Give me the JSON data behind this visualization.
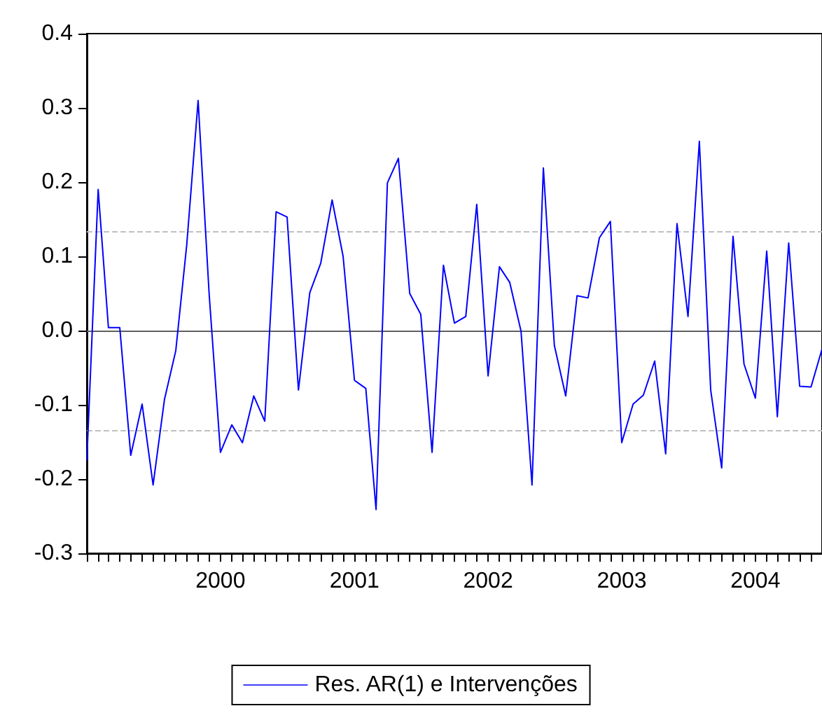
{
  "chart_data": {
    "type": "line",
    "x": [
      "1999-01",
      "1999-02",
      "1999-03",
      "1999-04",
      "1999-05",
      "1999-06",
      "1999-07",
      "1999-08",
      "1999-09",
      "1999-10",
      "1999-11",
      "1999-12",
      "2000-01",
      "2000-02",
      "2000-03",
      "2000-04",
      "2000-05",
      "2000-06",
      "2000-07",
      "2000-08",
      "2000-09",
      "2000-10",
      "2000-11",
      "2000-12",
      "2001-01",
      "2001-02",
      "2001-03",
      "2001-04",
      "2001-05",
      "2001-06",
      "2001-07",
      "2001-08",
      "2001-09",
      "2001-10",
      "2001-11",
      "2001-12",
      "2002-01",
      "2002-02",
      "2002-03",
      "2002-04",
      "2002-05",
      "2002-06",
      "2002-07",
      "2002-08",
      "2002-09",
      "2002-10",
      "2002-11",
      "2002-12",
      "2003-01",
      "2003-02",
      "2003-03",
      "2003-04",
      "2003-05",
      "2003-06",
      "2003-07",
      "2003-08",
      "2003-09",
      "2003-10",
      "2003-11",
      "2003-12",
      "2004-01",
      "2004-02",
      "2004-03",
      "2004-04",
      "2004-05",
      "2004-06",
      "2004-07"
    ],
    "series": [
      {
        "name": "Res. AR(1) e Intervenções",
        "color": "#0000ff",
        "values": [
          -0.175,
          0.19,
          0.004,
          0.004,
          -0.168,
          -0.099,
          -0.208,
          -0.093,
          -0.027,
          0.116,
          0.31,
          0.05,
          -0.164,
          -0.127,
          -0.151,
          -0.088,
          -0.122,
          0.16,
          0.153,
          -0.08,
          0.051,
          0.091,
          0.176,
          0.1,
          -0.067,
          -0.078,
          -0.241,
          0.199,
          0.232,
          0.05,
          0.022,
          -0.164,
          0.088,
          0.01,
          0.019,
          0.17,
          -0.061,
          0.086,
          0.065,
          -0.001,
          -0.208,
          0.219,
          -0.02,
          -0.088,
          0.047,
          0.044,
          0.125,
          0.147,
          -0.151,
          -0.099,
          -0.087,
          -0.041,
          -0.166,
          0.144,
          0.019,
          0.255,
          -0.08,
          -0.185,
          0.127,
          -0.045,
          -0.091,
          0.107,
          -0.116,
          0.118,
          -0.075,
          -0.076,
          -0.025
        ]
      }
    ],
    "xlim": [
      "1999-01",
      "2004-07"
    ],
    "xticks": [
      {
        "value": "2000-01",
        "label": "2000"
      },
      {
        "value": "2001-01",
        "label": "2001"
      },
      {
        "value": "2002-01",
        "label": "2002"
      },
      {
        "value": "2003-01",
        "label": "2003"
      },
      {
        "value": "2004-01",
        "label": "2004"
      }
    ],
    "ylim": [
      -0.3,
      0.4
    ],
    "yticks": [
      -0.3,
      -0.2,
      -0.1,
      {
        "value": 0,
        "label": "0.0"
      },
      0.1,
      0.2,
      0.3,
      0.4
    ],
    "ref_lines": [
      {
        "axis": "y",
        "value": 0,
        "color": "#606060",
        "line_style": "solid"
      },
      {
        "axis": "y",
        "value": 0.134,
        "color": "#c0c0c0",
        "line_style": "dashed"
      },
      {
        "axis": "y",
        "value": -0.134,
        "color": "#c0c0c0",
        "line_style": "dashed"
      }
    ],
    "grid": false,
    "legend": "bottom",
    "line_style": "solid"
  }
}
